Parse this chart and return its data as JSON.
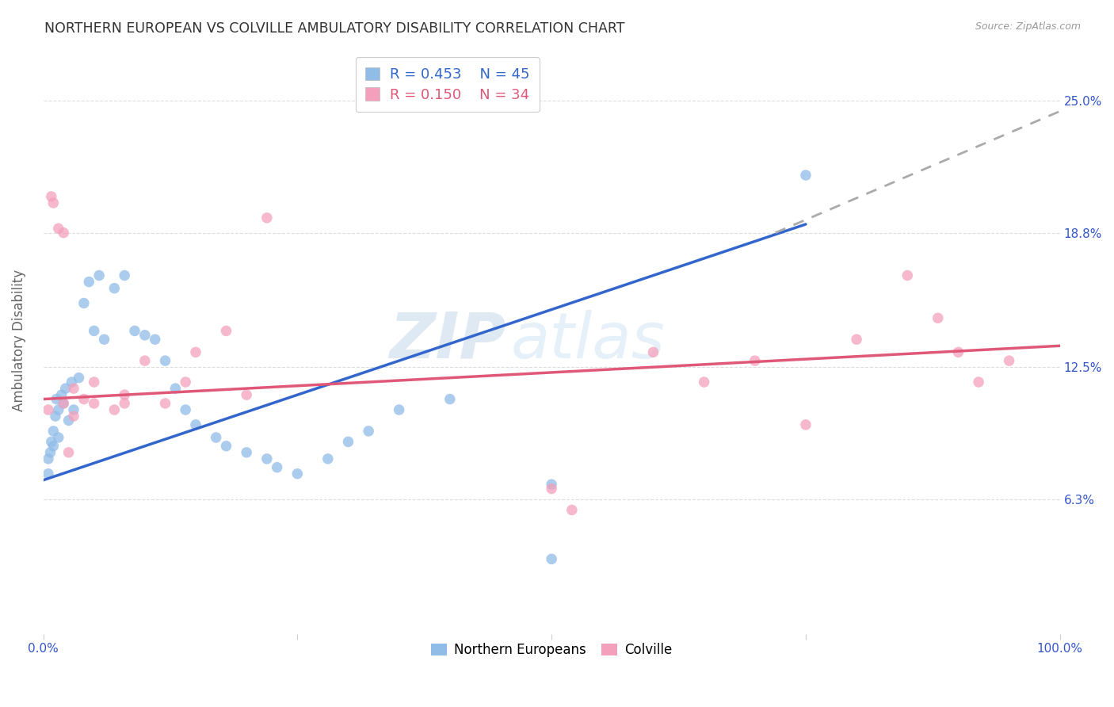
{
  "title": "NORTHERN EUROPEAN VS COLVILLE AMBULATORY DISABILITY CORRELATION CHART",
  "source_text": "Source: ZipAtlas.com",
  "ylabel": "Ambulatory Disability",
  "watermark_part1": "ZIP",
  "watermark_part2": "atlas",
  "xlim": [
    0,
    100
  ],
  "ylim": [
    0.0,
    27.5
  ],
  "ytick_positions": [
    6.3,
    12.5,
    18.8,
    25.0
  ],
  "ytick_labels": [
    "6.3%",
    "12.5%",
    "18.8%",
    "25.0%"
  ],
  "blue_color": "#90bce8",
  "pink_color": "#f4a0bc",
  "blue_line_color": "#3366cc",
  "pink_line_color": "#e05878",
  "dashed_line_color": "#aaaaaa",
  "legend_R_blue": "0.453",
  "legend_N_blue": "45",
  "legend_R_pink": "0.150",
  "legend_N_pink": "34",
  "blue_points_x": [
    0.5,
    0.5,
    0.7,
    0.8,
    1.0,
    1.0,
    1.2,
    1.3,
    1.5,
    1.5,
    1.8,
    2.0,
    2.2,
    2.5,
    2.8,
    3.0,
    3.5,
    4.0,
    4.5,
    5.0,
    5.5,
    6.0,
    7.0,
    8.0,
    9.0,
    10.0,
    11.0,
    12.0,
    13.0,
    14.0,
    15.0,
    17.0,
    18.0,
    20.0,
    22.0,
    23.0,
    25.0,
    28.0,
    30.0,
    32.0,
    35.0,
    40.0,
    50.0,
    75.0,
    50.0
  ],
  "blue_points_y": [
    7.5,
    8.2,
    8.5,
    9.0,
    8.8,
    9.5,
    10.2,
    11.0,
    9.2,
    10.5,
    11.2,
    10.8,
    11.5,
    10.0,
    11.8,
    10.5,
    12.0,
    15.5,
    16.5,
    14.2,
    16.8,
    13.8,
    16.2,
    16.8,
    14.2,
    14.0,
    13.8,
    12.8,
    11.5,
    10.5,
    9.8,
    9.2,
    8.8,
    8.5,
    8.2,
    7.8,
    7.5,
    8.2,
    9.0,
    9.5,
    10.5,
    11.0,
    3.5,
    21.5,
    7.0
  ],
  "pink_points_x": [
    0.5,
    0.8,
    1.0,
    1.5,
    2.0,
    2.5,
    3.0,
    4.0,
    5.0,
    7.0,
    8.0,
    10.0,
    12.0,
    14.0,
    15.0,
    18.0,
    20.0,
    22.0,
    50.0,
    52.0,
    60.0,
    65.0,
    70.0,
    75.0,
    80.0,
    85.0,
    88.0,
    90.0,
    92.0,
    95.0,
    2.0,
    3.0,
    5.0,
    8.0
  ],
  "pink_points_y": [
    10.5,
    20.5,
    20.2,
    19.0,
    18.8,
    8.5,
    10.2,
    11.0,
    10.8,
    10.5,
    11.2,
    12.8,
    10.8,
    11.8,
    13.2,
    14.2,
    11.2,
    19.5,
    6.8,
    5.8,
    13.2,
    11.8,
    12.8,
    9.8,
    13.8,
    16.8,
    14.8,
    13.2,
    11.8,
    12.8,
    10.8,
    11.5,
    11.8,
    10.8
  ],
  "blue_line_x0": 0,
  "blue_line_y0": 7.2,
  "blue_line_x1": 75,
  "blue_line_y1": 19.2,
  "blue_dash_x0": 72,
  "blue_dash_y0": 18.8,
  "blue_dash_x1": 100,
  "blue_dash_y1": 24.5,
  "pink_line_x0": 0,
  "pink_line_y0": 11.0,
  "pink_line_x1": 100,
  "pink_line_y1": 13.5,
  "bg_color": "#ffffff",
  "grid_color": "#dddddd",
  "marker_size": 95,
  "axis_tick_color": "#3355cc",
  "ylabel_color": "#666666",
  "title_color": "#333333",
  "source_color": "#999999"
}
